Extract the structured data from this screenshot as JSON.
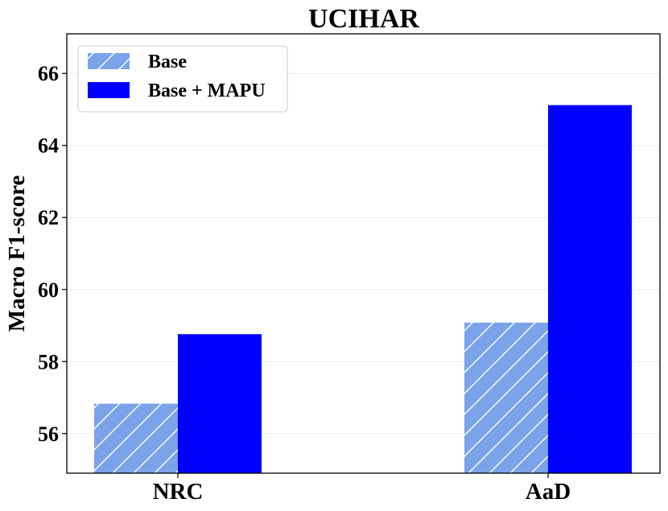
{
  "chart_data": {
    "type": "bar",
    "title": "UCIHAR",
    "xlabel": "",
    "ylabel": "Macro F1-score",
    "categories": [
      "NRC",
      "AaD"
    ],
    "ylim": [
      54.9,
      67.1
    ],
    "yticks": [
      56,
      58,
      60,
      62,
      64,
      66
    ],
    "grid": true,
    "legend_position": "top-left",
    "series": [
      {
        "name": "Base",
        "values": [
          56.83,
          59.08
        ],
        "color": "#7aa3ea",
        "hatch": "diagonal"
      },
      {
        "name": "Base + MAPU",
        "values": [
          58.76,
          65.12
        ],
        "color": "#0000ff",
        "hatch": "none"
      }
    ]
  }
}
